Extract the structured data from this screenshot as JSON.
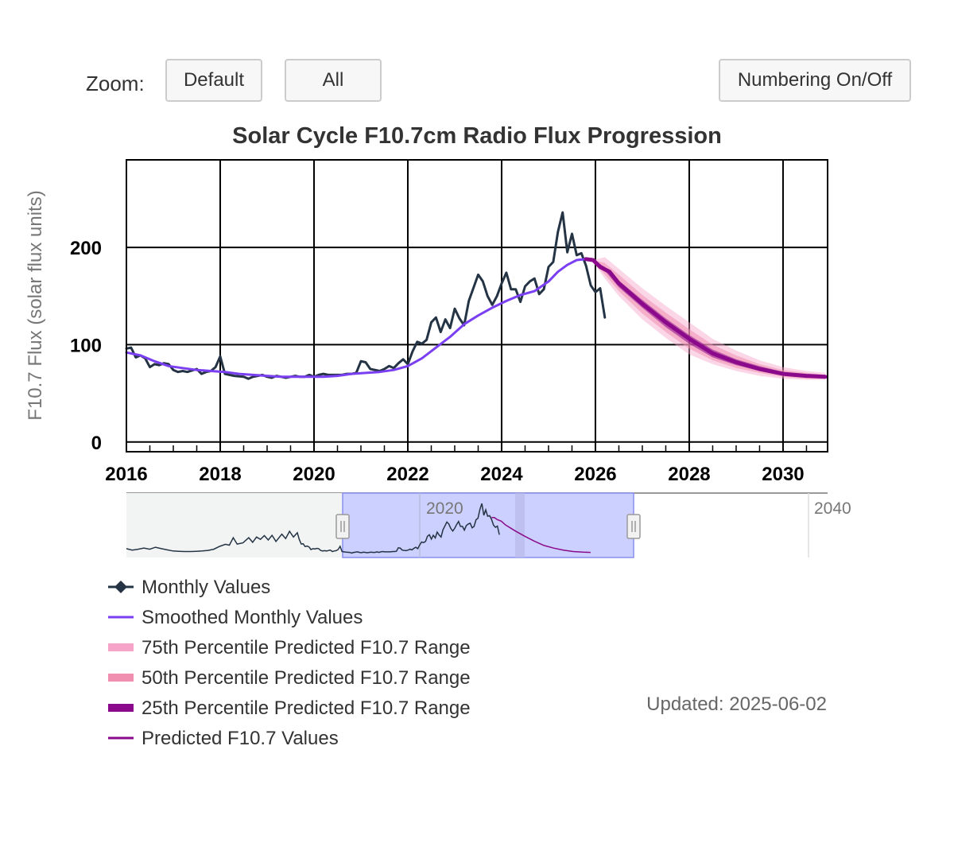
{
  "toolbar": {
    "zoom_label": "Zoom:",
    "default_label": "Default",
    "all_label": "All",
    "numbering_label": "Numbering On/Off"
  },
  "updated_text": "Updated: 2025-06-02",
  "colors": {
    "monthly": "#253445",
    "smoothed": "#7b3ff2",
    "p75": "#f5a3c7",
    "p50": "#f08fb0",
    "p25": "#8b0a8b",
    "predicted": "#8b0a8b",
    "navigator_fill": "#ccd0ff",
    "navigator_border": "#8a8ff0"
  },
  "chart_data": {
    "type": "line",
    "title": "Solar Cycle F10.7cm Radio Flux Progression",
    "xlabel": "",
    "ylabel": "F10.7 Flux (solar flux units)",
    "xlim": [
      2016.0,
      2030.95
    ],
    "ylim": [
      -10,
      290
    ],
    "x_ticks": [
      2016,
      2018,
      2020,
      2022,
      2024,
      2026,
      2028,
      2030
    ],
    "y_ticks": [
      0,
      100,
      200
    ],
    "grid": true,
    "legend_position": "bottom-left",
    "series": [
      {
        "name": "Monthly Values",
        "style": "line-with-diamond",
        "points": [
          [
            2016.0,
            96
          ],
          [
            2016.1,
            97
          ],
          [
            2016.2,
            87
          ],
          [
            2016.3,
            89
          ],
          [
            2016.4,
            86
          ],
          [
            2016.5,
            77
          ],
          [
            2016.6,
            80
          ],
          [
            2016.7,
            79
          ],
          [
            2016.8,
            81
          ],
          [
            2016.9,
            80
          ],
          [
            2017.0,
            74
          ],
          [
            2017.1,
            72
          ],
          [
            2017.2,
            73
          ],
          [
            2017.3,
            72
          ],
          [
            2017.5,
            75
          ],
          [
            2017.6,
            70
          ],
          [
            2017.7,
            72
          ],
          [
            2017.8,
            73
          ],
          [
            2017.9,
            77
          ],
          [
            2018.0,
            88
          ],
          [
            2018.1,
            70
          ],
          [
            2018.2,
            69
          ],
          [
            2018.3,
            68
          ],
          [
            2018.5,
            67
          ],
          [
            2018.6,
            65
          ],
          [
            2018.7,
            67
          ],
          [
            2018.8,
            68
          ],
          [
            2018.9,
            69
          ],
          [
            2019.0,
            67
          ],
          [
            2019.1,
            66
          ],
          [
            2019.2,
            68
          ],
          [
            2019.3,
            67
          ],
          [
            2019.4,
            66
          ],
          [
            2019.5,
            67
          ],
          [
            2019.6,
            68
          ],
          [
            2019.7,
            67
          ],
          [
            2019.8,
            67
          ],
          [
            2019.9,
            69
          ],
          [
            2020.0,
            67
          ],
          [
            2020.1,
            69
          ],
          [
            2020.2,
            70
          ],
          [
            2020.3,
            69
          ],
          [
            2020.4,
            69
          ],
          [
            2020.6,
            69
          ],
          [
            2020.7,
            70
          ],
          [
            2020.8,
            70
          ],
          [
            2020.9,
            71
          ],
          [
            2021.0,
            83
          ],
          [
            2021.1,
            82
          ],
          [
            2021.2,
            75
          ],
          [
            2021.3,
            74
          ],
          [
            2021.4,
            73
          ],
          [
            2021.5,
            75
          ],
          [
            2021.6,
            78
          ],
          [
            2021.7,
            76
          ],
          [
            2021.8,
            81
          ],
          [
            2021.9,
            85
          ],
          [
            2022.0,
            80
          ],
          [
            2022.1,
            93
          ],
          [
            2022.2,
            103
          ],
          [
            2022.3,
            101
          ],
          [
            2022.4,
            105
          ],
          [
            2022.5,
            123
          ],
          [
            2022.6,
            128
          ],
          [
            2022.7,
            113
          ],
          [
            2022.8,
            126
          ],
          [
            2022.9,
            117
          ],
          [
            2023.0,
            137
          ],
          [
            2023.1,
            127
          ],
          [
            2023.2,
            120
          ],
          [
            2023.3,
            145
          ],
          [
            2023.5,
            172
          ],
          [
            2023.6,
            165
          ],
          [
            2023.7,
            150
          ],
          [
            2023.8,
            141
          ],
          [
            2023.9,
            150
          ],
          [
            2024.0,
            163
          ],
          [
            2024.1,
            174
          ],
          [
            2024.2,
            157
          ],
          [
            2024.3,
            157
          ],
          [
            2024.4,
            144
          ],
          [
            2024.5,
            160
          ],
          [
            2024.6,
            165
          ],
          [
            2024.7,
            168
          ],
          [
            2024.8,
            152
          ],
          [
            2024.9,
            157
          ],
          [
            2025.0,
            180
          ],
          [
            2025.1,
            185
          ],
          [
            2025.2,
            216
          ],
          [
            2025.3,
            236
          ],
          [
            2025.4,
            195
          ],
          [
            2025.5,
            214
          ],
          [
            2025.6,
            192
          ],
          [
            2025.7,
            194
          ],
          [
            2025.8,
            181
          ],
          [
            2025.9,
            161
          ],
          [
            2026.0,
            154
          ],
          [
            2026.1,
            158
          ],
          [
            2026.2,
            128
          ]
        ]
      },
      {
        "name": "Smoothed Monthly Values",
        "style": "line",
        "points": [
          [
            2016.0,
            92
          ],
          [
            2016.3,
            89
          ],
          [
            2016.6,
            83
          ],
          [
            2016.9,
            78
          ],
          [
            2017.2,
            76
          ],
          [
            2017.5,
            74
          ],
          [
            2017.8,
            73
          ],
          [
            2018.1,
            72
          ],
          [
            2018.4,
            70
          ],
          [
            2018.7,
            69
          ],
          [
            2019.0,
            68
          ],
          [
            2019.3,
            67
          ],
          [
            2019.6,
            67
          ],
          [
            2019.9,
            67
          ],
          [
            2020.2,
            67
          ],
          [
            2020.5,
            68
          ],
          [
            2020.8,
            70
          ],
          [
            2021.1,
            71
          ],
          [
            2021.4,
            72
          ],
          [
            2021.7,
            74
          ],
          [
            2022.0,
            78
          ],
          [
            2022.3,
            86
          ],
          [
            2022.6,
            97
          ],
          [
            2022.9,
            108
          ],
          [
            2023.2,
            121
          ],
          [
            2023.5,
            130
          ],
          [
            2023.8,
            138
          ],
          [
            2024.1,
            145
          ],
          [
            2024.4,
            151
          ],
          [
            2024.7,
            155
          ],
          [
            2025.0,
            165
          ],
          [
            2025.2,
            175
          ],
          [
            2025.4,
            182
          ],
          [
            2025.6,
            187
          ],
          [
            2025.8,
            188
          ],
          [
            2025.95,
            187
          ]
        ]
      },
      {
        "name": "75th Percentile Predicted F10.7 Range",
        "style": "band",
        "points": [
          [
            2025.95,
            185,
            187
          ],
          [
            2026.2,
            168,
            190
          ],
          [
            2026.5,
            150,
            178
          ],
          [
            2027.0,
            126,
            158
          ],
          [
            2027.5,
            107,
            140
          ],
          [
            2028.0,
            90,
            123
          ],
          [
            2028.5,
            80,
            106
          ],
          [
            2029.0,
            73,
            94
          ],
          [
            2029.5,
            68,
            84
          ],
          [
            2030.0,
            65,
            77
          ],
          [
            2030.5,
            64,
            73
          ],
          [
            2030.9,
            64,
            71
          ]
        ]
      },
      {
        "name": "50th Percentile Predicted F10.7 Range",
        "style": "band",
        "points": [
          [
            2025.95,
            186,
            187
          ],
          [
            2026.2,
            172,
            184
          ],
          [
            2026.5,
            155,
            172
          ],
          [
            2027.0,
            132,
            151
          ],
          [
            2027.5,
            113,
            133
          ],
          [
            2028.0,
            96,
            116
          ],
          [
            2028.5,
            84,
            100
          ],
          [
            2029.0,
            76,
            89
          ],
          [
            2029.5,
            71,
            80
          ],
          [
            2030.0,
            67,
            74
          ],
          [
            2030.5,
            65,
            71
          ],
          [
            2030.9,
            65,
            69
          ]
        ]
      },
      {
        "name": "25th Percentile Predicted F10.7 Range",
        "style": "band",
        "points": [
          [
            2025.95,
            186,
            187
          ],
          [
            2026.2,
            176,
            180
          ],
          [
            2026.5,
            159,
            166
          ],
          [
            2027.0,
            138,
            146
          ],
          [
            2027.5,
            118,
            127
          ],
          [
            2028.0,
            101,
            110
          ],
          [
            2028.5,
            87,
            95
          ],
          [
            2029.0,
            79,
            85
          ],
          [
            2029.5,
            73,
            78
          ],
          [
            2030.0,
            69,
            72
          ],
          [
            2030.5,
            67,
            69
          ],
          [
            2030.9,
            66,
            68
          ]
        ]
      },
      {
        "name": "Predicted F10.7 Values",
        "style": "line",
        "points": [
          [
            2025.8,
            188
          ],
          [
            2025.95,
            187
          ],
          [
            2026.1,
            180
          ],
          [
            2026.3,
            175
          ],
          [
            2026.5,
            163
          ],
          [
            2027.0,
            142
          ],
          [
            2027.5,
            123
          ],
          [
            2028.0,
            106
          ],
          [
            2028.5,
            91
          ],
          [
            2029.0,
            82
          ],
          [
            2029.5,
            75
          ],
          [
            2030.0,
            70
          ],
          [
            2030.5,
            68
          ],
          [
            2030.9,
            67
          ]
        ]
      }
    ],
    "navigator": {
      "tick_labels": [
        "2020",
        "2040"
      ]
    }
  }
}
